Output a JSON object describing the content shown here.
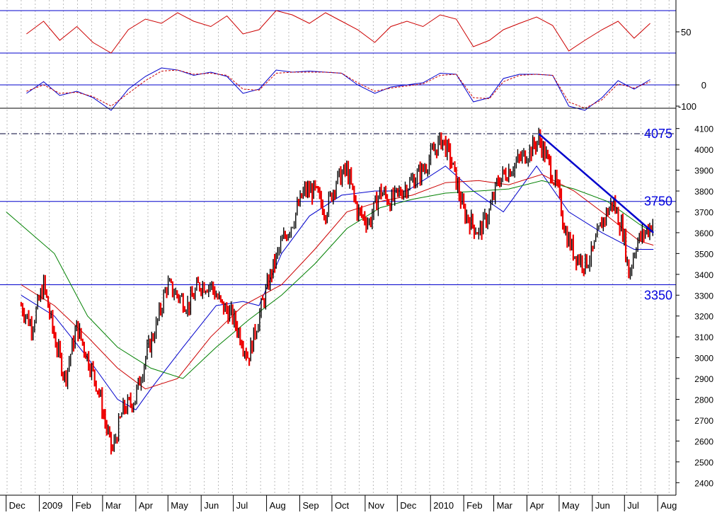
{
  "chart_data": [
    {
      "type": "line",
      "panel": "oscillator-top",
      "y_ticks": [
        "50"
      ],
      "reference_levels": [
        70,
        30
      ],
      "ylim": [
        20,
        80
      ],
      "series": [
        {
          "color": "#cc0000",
          "style": "solid",
          "x": [
            "2008-12-20",
            "2009-01-05",
            "2009-01-20",
            "2009-02-05",
            "2009-02-20",
            "2009-03-09",
            "2009-03-25",
            "2009-04-10",
            "2009-04-25",
            "2009-05-10",
            "2009-05-25",
            "2009-06-10",
            "2009-06-25",
            "2009-07-10",
            "2009-07-25",
            "2009-08-10",
            "2009-08-25",
            "2009-09-10",
            "2009-09-25",
            "2009-10-10",
            "2009-10-25",
            "2009-11-10",
            "2009-11-25",
            "2009-12-10",
            "2009-12-25",
            "2010-01-10",
            "2010-01-25",
            "2010-02-10",
            "2010-02-25",
            "2010-03-10",
            "2010-03-25",
            "2010-04-10",
            "2010-04-25",
            "2010-05-10",
            "2010-05-25",
            "2010-06-10",
            "2010-06-25",
            "2010-07-10",
            "2010-07-25"
          ],
          "values": [
            48,
            60,
            42,
            55,
            40,
            30,
            52,
            62,
            58,
            68,
            60,
            55,
            65,
            48,
            52,
            70,
            66,
            58,
            68,
            60,
            52,
            40,
            55,
            60,
            55,
            66,
            62,
            36,
            42,
            52,
            58,
            64,
            56,
            32,
            42,
            52,
            60,
            44,
            58
          ]
        }
      ]
    },
    {
      "type": "line",
      "panel": "oscillator-mid",
      "y_ticks": [
        "0",
        "-100"
      ],
      "reference_levels": [
        0
      ],
      "ylim": [
        -150,
        100
      ],
      "series": [
        {
          "color": "#0000cc",
          "style": "solid",
          "x": [
            "2008-12-20",
            "2009-01-05",
            "2009-01-20",
            "2009-02-05",
            "2009-02-20",
            "2009-03-09",
            "2009-03-25",
            "2009-04-10",
            "2009-04-25",
            "2009-05-10",
            "2009-05-25",
            "2009-06-10",
            "2009-06-25",
            "2009-07-10",
            "2009-07-25",
            "2009-08-10",
            "2009-08-25",
            "2009-09-10",
            "2009-09-25",
            "2009-10-10",
            "2009-10-25",
            "2009-11-10",
            "2009-11-25",
            "2009-12-10",
            "2009-12-25",
            "2010-01-10",
            "2010-01-25",
            "2010-02-10",
            "2010-02-25",
            "2010-03-10",
            "2010-03-25",
            "2010-04-10",
            "2010-04-25",
            "2010-05-10",
            "2010-05-25",
            "2010-06-10",
            "2010-06-25",
            "2010-07-10",
            "2010-07-25"
          ],
          "values": [
            -40,
            15,
            -50,
            -30,
            -60,
            -120,
            -20,
            40,
            80,
            70,
            45,
            60,
            40,
            -40,
            -20,
            70,
            60,
            65,
            60,
            55,
            0,
            -40,
            -10,
            0,
            10,
            55,
            50,
            -80,
            -60,
            30,
            50,
            50,
            45,
            -100,
            -120,
            -60,
            20,
            -20,
            25
          ]
        },
        {
          "color": "#cc0000",
          "style": "dashed",
          "x": [
            "2008-12-20",
            "2009-01-05",
            "2009-01-20",
            "2009-02-05",
            "2009-02-20",
            "2009-03-09",
            "2009-03-25",
            "2009-04-10",
            "2009-04-25",
            "2009-05-10",
            "2009-05-25",
            "2009-06-10",
            "2009-06-25",
            "2009-07-10",
            "2009-07-25",
            "2009-08-10",
            "2009-08-25",
            "2009-09-10",
            "2009-09-25",
            "2009-10-10",
            "2009-10-25",
            "2009-11-10",
            "2009-11-25",
            "2009-12-10",
            "2009-12-25",
            "2010-01-10",
            "2010-01-25",
            "2010-02-10",
            "2010-02-25",
            "2010-03-10",
            "2010-03-25",
            "2010-04-10",
            "2010-04-25",
            "2010-05-10",
            "2010-05-25",
            "2010-06-10",
            "2010-06-25",
            "2010-07-10",
            "2010-07-25"
          ],
          "values": [
            -30,
            0,
            -40,
            -35,
            -55,
            -100,
            -40,
            20,
            65,
            70,
            50,
            55,
            45,
            -20,
            -25,
            55,
            60,
            60,
            60,
            55,
            10,
            -30,
            -15,
            -5,
            5,
            45,
            50,
            -60,
            -65,
            15,
            45,
            50,
            45,
            -80,
            -110,
            -70,
            5,
            -15,
            15
          ]
        }
      ]
    },
    {
      "type": "candlestick",
      "panel": "price",
      "x_ticks": [
        "Dec",
        "2009",
        "Feb",
        "Mar",
        "Apr",
        "May",
        "Jun",
        "Jul",
        "Aug",
        "Sep",
        "Oct",
        "Nov",
        "Dec",
        "2010",
        "Feb",
        "Mar",
        "Apr",
        "May",
        "Jun",
        "Jul",
        "Aug"
      ],
      "y_ticks": [
        2400,
        2500,
        2600,
        2700,
        2800,
        2900,
        3000,
        3100,
        3200,
        3300,
        3400,
        3500,
        3600,
        3700,
        3800,
        3900,
        4000,
        4100
      ],
      "ylim": [
        2340,
        4160
      ],
      "levels": [
        {
          "value": 4075,
          "label": "4075",
          "style": "dash-dot"
        },
        {
          "value": 3750,
          "label": "3750",
          "style": "solid"
        },
        {
          "value": 3350,
          "label": "3350",
          "style": "solid"
        }
      ],
      "close": {
        "x": [
          "2008-12-15",
          "2008-12-25",
          "2009-01-05",
          "2009-01-15",
          "2009-01-25",
          "2009-02-05",
          "2009-02-15",
          "2009-02-25",
          "2009-03-05",
          "2009-03-10",
          "2009-03-20",
          "2009-03-31",
          "2009-04-10",
          "2009-04-20",
          "2009-04-30",
          "2009-05-10",
          "2009-05-20",
          "2009-05-30",
          "2009-06-10",
          "2009-06-20",
          "2009-06-30",
          "2009-07-08",
          "2009-07-15",
          "2009-07-25",
          "2009-08-05",
          "2009-08-15",
          "2009-08-25",
          "2009-09-05",
          "2009-09-15",
          "2009-09-25",
          "2009-10-05",
          "2009-10-15",
          "2009-10-25",
          "2009-11-05",
          "2009-11-15",
          "2009-11-25",
          "2009-12-05",
          "2009-12-15",
          "2009-12-25",
          "2010-01-05",
          "2010-01-12",
          "2010-01-20",
          "2010-02-01",
          "2010-02-08",
          "2010-02-15",
          "2010-02-25",
          "2010-03-05",
          "2010-03-15",
          "2010-03-25",
          "2010-04-05",
          "2010-04-12",
          "2010-04-20",
          "2010-04-30",
          "2010-05-07",
          "2010-05-15",
          "2010-05-25",
          "2010-06-01",
          "2010-06-10",
          "2010-06-20",
          "2010-06-30",
          "2010-07-05",
          "2010-07-12",
          "2010-07-20",
          "2010-07-28"
        ],
        "values": [
          3250,
          3150,
          3350,
          3100,
          2900,
          3150,
          3000,
          2850,
          2650,
          2550,
          2750,
          2800,
          3000,
          3150,
          3350,
          3300,
          3250,
          3350,
          3350,
          3250,
          3200,
          3100,
          3000,
          3200,
          3400,
          3550,
          3650,
          3800,
          3800,
          3700,
          3850,
          3900,
          3700,
          3650,
          3800,
          3750,
          3800,
          3850,
          3900,
          4000,
          4050,
          3950,
          3700,
          3650,
          3600,
          3700,
          3850,
          3900,
          3950,
          4000,
          4050,
          3950,
          3800,
          3600,
          3500,
          3450,
          3500,
          3650,
          3750,
          3600,
          3400,
          3550,
          3600,
          3650
        ]
      },
      "moving_averages": [
        {
          "color": "#0000cc",
          "x": [
            "2008-12-15",
            "2009-01-15",
            "2009-02-15",
            "2009-03-15",
            "2009-04-01",
            "2009-04-15",
            "2009-05-15",
            "2009-06-15",
            "2009-07-10",
            "2009-07-25",
            "2009-08-15",
            "2009-09-10",
            "2009-10-10",
            "2009-11-10",
            "2009-12-10",
            "2010-01-15",
            "2010-02-10",
            "2010-03-10",
            "2010-04-10",
            "2010-05-10",
            "2010-06-10",
            "2010-07-10",
            "2010-07-28"
          ],
          "values": [
            3300,
            3200,
            3000,
            2800,
            2750,
            2850,
            3050,
            3250,
            3270,
            3250,
            3500,
            3680,
            3780,
            3800,
            3800,
            3920,
            3800,
            3700,
            3920,
            3700,
            3600,
            3520,
            3520
          ]
        },
        {
          "color": "#cc0000",
          "x": [
            "2008-12-15",
            "2009-01-15",
            "2009-02-15",
            "2009-03-15",
            "2009-04-10",
            "2009-05-10",
            "2009-06-10",
            "2009-07-10",
            "2009-08-15",
            "2009-09-15",
            "2009-10-15",
            "2009-11-15",
            "2009-12-15",
            "2010-01-15",
            "2010-02-15",
            "2010-03-15",
            "2010-04-15",
            "2010-05-15",
            "2010-06-15",
            "2010-07-15",
            "2010-07-28"
          ],
          "values": [
            3350,
            3250,
            3100,
            2950,
            2850,
            2900,
            3100,
            3250,
            3350,
            3520,
            3700,
            3750,
            3780,
            3840,
            3850,
            3830,
            3880,
            3800,
            3680,
            3560,
            3540
          ]
        },
        {
          "color": "#008000",
          "x": [
            "2008-12-01",
            "2009-01-15",
            "2009-02-15",
            "2009-03-15",
            "2009-04-15",
            "2009-05-15",
            "2009-06-15",
            "2009-07-15",
            "2009-08-15",
            "2009-09-15",
            "2009-10-15",
            "2009-11-15",
            "2009-12-15",
            "2010-01-15",
            "2010-02-15",
            "2010-03-15",
            "2010-04-15",
            "2010-05-15",
            "2010-06-15",
            "2010-07-15",
            "2010-07-28"
          ],
          "values": [
            3700,
            3500,
            3200,
            3050,
            2950,
            2900,
            3050,
            3180,
            3300,
            3450,
            3620,
            3720,
            3760,
            3790,
            3800,
            3810,
            3850,
            3810,
            3750,
            3640,
            3600
          ]
        }
      ],
      "trendline": {
        "color": "#0000cc",
        "x": [
          "2010-04-12",
          "2010-07-28"
        ],
        "values": [
          4075,
          3600
        ]
      }
    }
  ]
}
